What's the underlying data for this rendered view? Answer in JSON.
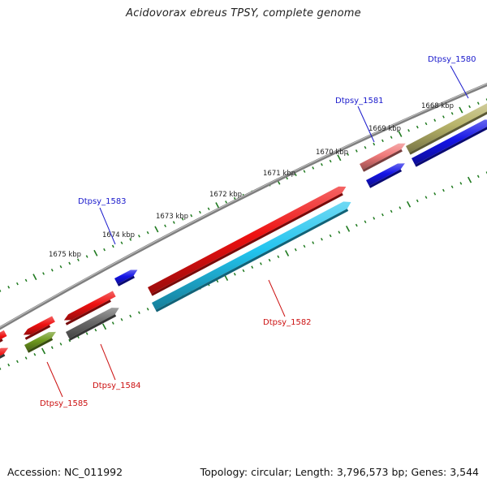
{
  "title": "Acidovorax ebreus TPSY, complete genome",
  "footer": {
    "accession": "Accession: NC_011992",
    "topology": "Topology: circular; Length: 3,796,573 bp; Genes: 3,544"
  },
  "colors": {
    "backbone": "#7f7f7f",
    "tick": "#1f7a1f",
    "label_plus": "#1a1acc",
    "label_minus": "#cc1111"
  },
  "ticks": [
    {
      "label": "1668 kbp"
    },
    {
      "label": "1669 kbp"
    },
    {
      "label": "1670 kbp"
    },
    {
      "label": "1671 kbp"
    },
    {
      "label": "1672 kbp"
    },
    {
      "label": "1673 kbp"
    },
    {
      "label": "1674 kbp"
    },
    {
      "label": "1675 kbp"
    }
  ],
  "genes": [
    {
      "name": "Dtpsy_1580",
      "strand": "plus",
      "color": "#b8b46a",
      "labeled": true
    },
    {
      "name": "Dtpsy_1581",
      "strand": "plus",
      "color": "#f07a7a",
      "labeled": true
    },
    {
      "name": "Dtpsy_1583",
      "strand": "plus",
      "color": "#1414e6",
      "labeled": true
    },
    {
      "name": "Dtpsy_1582",
      "strand": "minus",
      "color": "#22c4ee",
      "labeled": true
    },
    {
      "name": "Dtpsy_1584",
      "strand": "minus",
      "color": "#6a6a6a",
      "labeled": true
    },
    {
      "name": "Dtpsy_1585",
      "strand": "minus",
      "color": "#6f9a1f",
      "labeled": true
    }
  ]
}
